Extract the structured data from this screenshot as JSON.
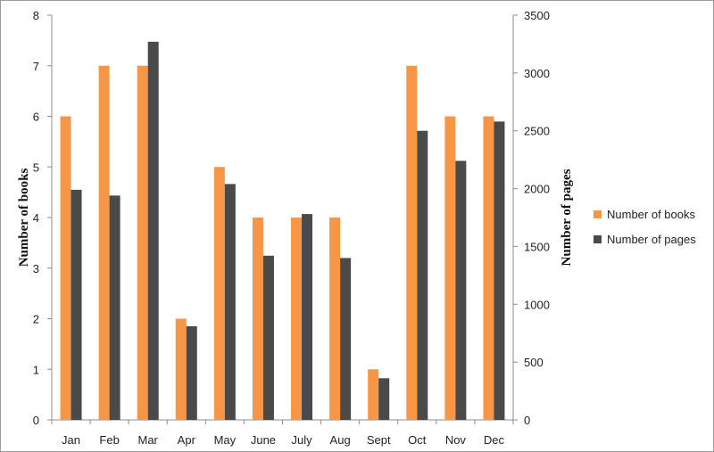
{
  "chart_data": {
    "type": "bar",
    "categories": [
      "Jan",
      "Feb",
      "Mar",
      "Apr",
      "May",
      "June",
      "July",
      "Aug",
      "Sept",
      "Oct",
      "Nov",
      "Dec"
    ],
    "series": [
      {
        "name": "Number of books",
        "axis": "left",
        "color": "#f79646",
        "values": [
          6,
          7,
          7,
          2,
          5,
          4,
          4,
          4,
          1,
          7,
          6,
          6
        ]
      },
      {
        "name": "Number of pages",
        "axis": "right",
        "color": "#4a4a4a",
        "values": [
          1990,
          1940,
          3270,
          810,
          2040,
          1420,
          1780,
          1400,
          360,
          2500,
          2240,
          2580
        ]
      }
    ],
    "y_left": {
      "label": "Number of books",
      "lim": [
        0,
        8
      ],
      "ticks": [
        "0",
        "1",
        "2",
        "3",
        "4",
        "5",
        "6",
        "7",
        "8"
      ]
    },
    "y_right": {
      "label": "Number of pages",
      "lim": [
        0,
        3500
      ],
      "ticks": [
        "0",
        "500",
        "1000",
        "1500",
        "2000",
        "2500",
        "3000",
        "3500"
      ]
    },
    "grid": false,
    "legend": "right"
  }
}
